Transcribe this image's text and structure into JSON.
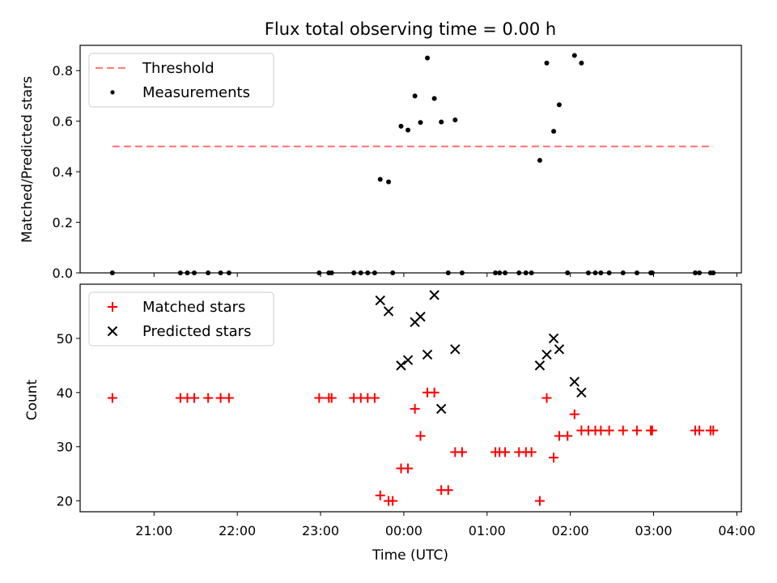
{
  "chart_data": {
    "title": "Flux total observing time = 0.00 h",
    "xlabel": "Time (UTC)",
    "x_tick_labels": [
      "21:00",
      "22:00",
      "23:00",
      "00:00",
      "01:00",
      "02:00",
      "03:00",
      "04:00"
    ],
    "panels": [
      {
        "type": "scatter",
        "ylabel": "Matched/Predicted stars",
        "ylim": [
          0,
          0.9
        ],
        "y_ticks": [
          "0.0",
          "0.2",
          "0.4",
          "0.6",
          "0.8"
        ],
        "legend_position": "upper-left",
        "series": [
          {
            "name": "Threshold",
            "kind": "line",
            "style": "dashed",
            "color": "#ff7f7f",
            "x": [
              "20:30",
              "03:43"
            ],
            "y": [
              0.5,
              0.5
            ]
          },
          {
            "name": "Measurements",
            "kind": "points",
            "marker": "dot",
            "color": "#000000",
            "points": [
              [
                "20:30",
                0
              ],
              [
                "21:19",
                0
              ],
              [
                "21:24",
                0
              ],
              [
                "21:29",
                0
              ],
              [
                "21:39",
                0
              ],
              [
                "21:48",
                0
              ],
              [
                "21:54",
                0
              ],
              [
                "22:59",
                0
              ],
              [
                "23:06",
                0
              ],
              [
                "23:08",
                0
              ],
              [
                "23:24",
                0
              ],
              [
                "23:29",
                0
              ],
              [
                "23:34",
                0
              ],
              [
                "23:39",
                0
              ],
              [
                "23:52",
                0
              ],
              [
                "23:43",
                0.37
              ],
              [
                "23:49",
                0.36
              ],
              [
                "23:58",
                0.58
              ],
              [
                "00:03",
                0.565
              ],
              [
                "00:08",
                0.7
              ],
              [
                "00:12",
                0.595
              ],
              [
                "00:17",
                0.85
              ],
              [
                "00:22",
                0.69
              ],
              [
                "00:27",
                0.597
              ],
              [
                "00:32",
                0
              ],
              [
                "00:37",
                0.605
              ],
              [
                "00:42",
                0
              ],
              [
                "01:06",
                0
              ],
              [
                "01:09",
                0
              ],
              [
                "01:13",
                0
              ],
              [
                "01:23",
                0
              ],
              [
                "01:28",
                0
              ],
              [
                "01:32",
                0
              ],
              [
                "01:38",
                0.445
              ],
              [
                "01:43",
                0.83
              ],
              [
                "01:48",
                0.56
              ],
              [
                "01:52",
                0.665
              ],
              [
                "01:58",
                0
              ],
              [
                "02:03",
                0.86
              ],
              [
                "02:08",
                0.83
              ],
              [
                "02:13",
                0
              ],
              [
                "02:18",
                0
              ],
              [
                "02:22",
                0
              ],
              [
                "02:28",
                0
              ],
              [
                "02:38",
                0
              ],
              [
                "02:48",
                0
              ],
              [
                "02:58",
                0
              ],
              [
                "02:59",
                0
              ],
              [
                "03:30",
                0
              ],
              [
                "03:33",
                0
              ],
              [
                "03:41",
                0
              ],
              [
                "03:43",
                0
              ]
            ]
          }
        ]
      },
      {
        "type": "scatter",
        "ylabel": "Count",
        "ylim": [
          18,
          60
        ],
        "y_ticks": [
          "20",
          "30",
          "40",
          "50"
        ],
        "legend_position": "upper-left",
        "series": [
          {
            "name": "Matched stars",
            "kind": "points",
            "marker": "plus",
            "color": "#ff0000",
            "points": [
              [
                "20:30",
                39
              ],
              [
                "21:19",
                39
              ],
              [
                "21:24",
                39
              ],
              [
                "21:29",
                39
              ],
              [
                "21:39",
                39
              ],
              [
                "21:48",
                39
              ],
              [
                "21:54",
                39
              ],
              [
                "22:59",
                39
              ],
              [
                "23:06",
                39
              ],
              [
                "23:08",
                39
              ],
              [
                "23:24",
                39
              ],
              [
                "23:29",
                39
              ],
              [
                "23:34",
                39
              ],
              [
                "23:39",
                39
              ],
              [
                "23:43",
                21
              ],
              [
                "23:49",
                20
              ],
              [
                "23:52",
                20
              ],
              [
                "23:58",
                26
              ],
              [
                "00:03",
                26
              ],
              [
                "00:08",
                37
              ],
              [
                "00:12",
                32
              ],
              [
                "00:17",
                40
              ],
              [
                "00:22",
                40
              ],
              [
                "00:27",
                22
              ],
              [
                "00:32",
                22
              ],
              [
                "00:37",
                29
              ],
              [
                "00:42",
                29
              ],
              [
                "01:06",
                29
              ],
              [
                "01:09",
                29
              ],
              [
                "01:13",
                29
              ],
              [
                "01:23",
                29
              ],
              [
                "01:28",
                29
              ],
              [
                "01:32",
                29
              ],
              [
                "01:38",
                20
              ],
              [
                "01:43",
                39
              ],
              [
                "01:48",
                28
              ],
              [
                "01:52",
                32
              ],
              [
                "01:58",
                32
              ],
              [
                "02:03",
                36
              ],
              [
                "02:08",
                33
              ],
              [
                "02:13",
                33
              ],
              [
                "02:18",
                33
              ],
              [
                "02:22",
                33
              ],
              [
                "02:28",
                33
              ],
              [
                "02:38",
                33
              ],
              [
                "02:48",
                33
              ],
              [
                "02:58",
                33
              ],
              [
                "02:59",
                33
              ],
              [
                "03:30",
                33
              ],
              [
                "03:33",
                33
              ],
              [
                "03:41",
                33
              ],
              [
                "03:43",
                33
              ]
            ]
          },
          {
            "name": "Predicted stars",
            "kind": "points",
            "marker": "x",
            "color": "#000000",
            "points": [
              [
                "23:43",
                57
              ],
              [
                "23:49",
                55
              ],
              [
                "23:58",
                45
              ],
              [
                "00:03",
                46
              ],
              [
                "00:08",
                53
              ],
              [
                "00:12",
                54
              ],
              [
                "00:17",
                47
              ],
              [
                "00:22",
                58
              ],
              [
                "00:27",
                37
              ],
              [
                "00:37",
                48
              ],
              [
                "01:38",
                45
              ],
              [
                "01:43",
                47
              ],
              [
                "01:48",
                50
              ],
              [
                "01:52",
                48
              ],
              [
                "02:03",
                42
              ],
              [
                "02:08",
                40
              ]
            ]
          }
        ]
      }
    ]
  }
}
